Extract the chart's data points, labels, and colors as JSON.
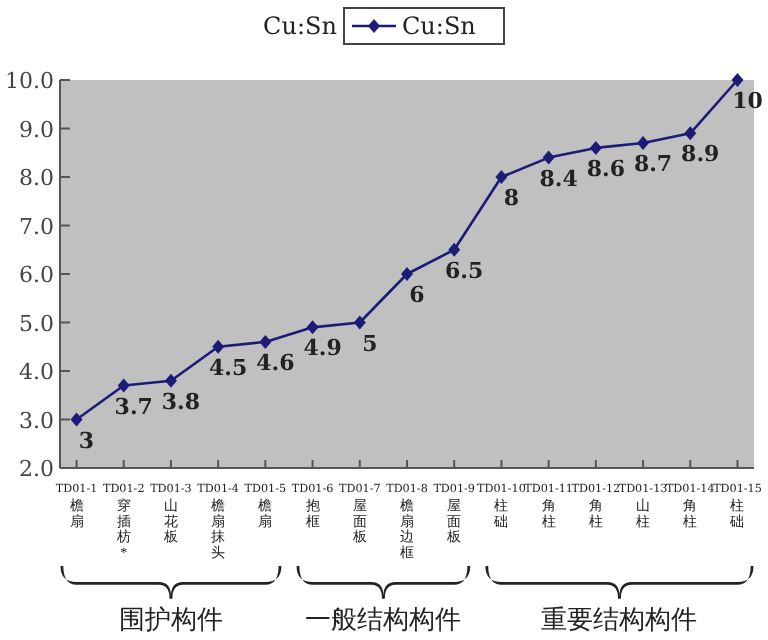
{
  "chart_data": {
    "type": "line",
    "title": "Cu:Sn",
    "categories": [
      "TD01-1",
      "TD01-2",
      "TD01-3",
      "TD01-4",
      "TD01-5",
      "TD01-6",
      "TD01-7",
      "TD01-8",
      "TD01-9",
      "TD01-10",
      "TD01-11",
      "TD01-12",
      "TD01-13",
      "TD01-14",
      "TD01-15"
    ],
    "series": [
      {
        "name": "Cu:Sn",
        "color": "#1c1c78",
        "values": [
          3,
          3.7,
          3.8,
          4.5,
          4.6,
          4.9,
          5,
          6,
          6.5,
          8,
          8.4,
          8.6,
          8.7,
          8.9,
          10
        ]
      }
    ],
    "ylim": [
      2,
      10
    ],
    "yticks": [
      {
        "value": 2,
        "label": "2.0"
      },
      {
        "value": 3,
        "label": "3.0"
      },
      {
        "value": 4,
        "label": "4.0"
      },
      {
        "value": 5,
        "label": "5.0"
      },
      {
        "value": 6,
        "label": "6.0"
      },
      {
        "value": 7,
        "label": "7.0"
      },
      {
        "value": 8,
        "label": "8.0"
      },
      {
        "value": 9,
        "label": "9.0"
      },
      {
        "value": 10,
        "label": "10.0"
      }
    ],
    "data_labels": true,
    "marker": "diamond",
    "legend": "top",
    "grid": false,
    "annotations": [
      "檐扇",
      "穿插枋*",
      "山花板",
      "檐扇抹头",
      "檐扇",
      "抱框",
      "屋面板",
      "檐扇边框",
      "屋面板",
      "柱础",
      "角柱",
      "角柱",
      "山柱",
      "角柱",
      "柱础",
      "围护构件",
      "一般结构构件",
      "重要结构构件"
    ]
  }
}
